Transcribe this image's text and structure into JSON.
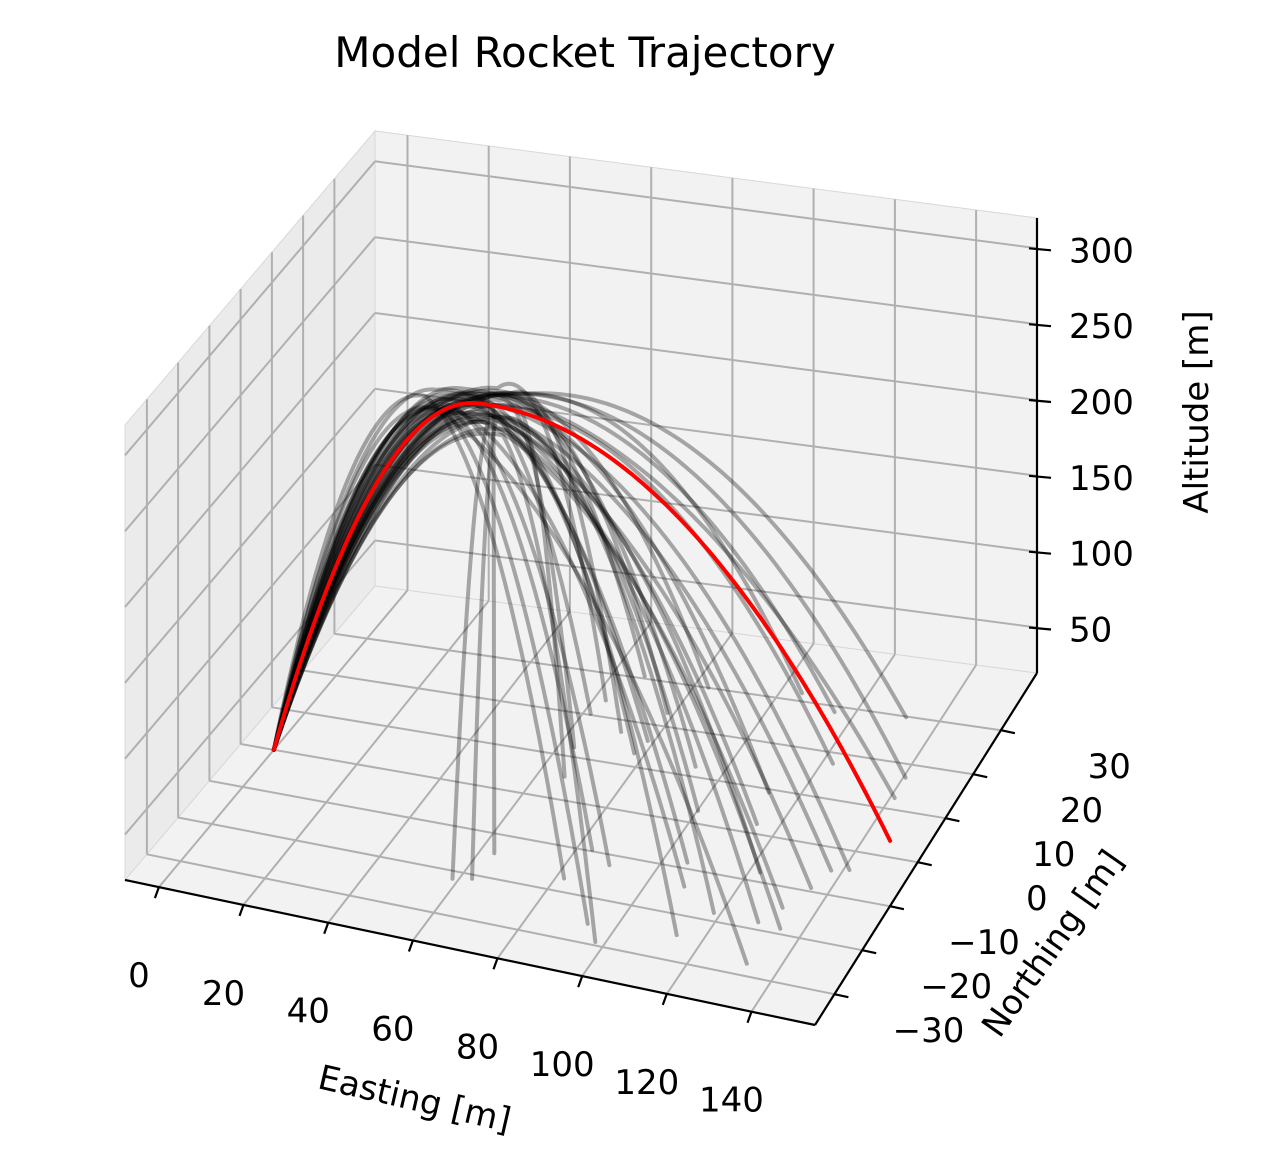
{
  "chart_data": {
    "type": "line3d",
    "title": "Model Rocket Trajectory",
    "xlabel": "Easting [m]",
    "ylabel": "Northing [m]",
    "zlabel": "Altitude [m]",
    "xlim": [
      -8,
      155
    ],
    "ylim": [
      -37,
      43
    ],
    "zlim": [
      20,
      320
    ],
    "xticks": [
      0,
      20,
      40,
      60,
      80,
      100,
      120,
      140
    ],
    "yticks": [
      -30,
      -20,
      -10,
      0,
      10,
      20,
      30
    ],
    "zticks": [
      50,
      100,
      150,
      200,
      250,
      300
    ],
    "grid": true,
    "colors": {
      "nominal": "#ff0000",
      "ensemble": "#000000",
      "pane": "#f2f2f2",
      "grid": "#b0b0b0"
    },
    "nominal": {
      "color": "red",
      "launch": [
        0,
        0,
        20
      ],
      "apex": [
        50,
        0,
        272
      ],
      "landing": [
        145,
        5,
        15
      ]
    },
    "ensemble": {
      "color": "black",
      "alpha": 0.32,
      "count": 40,
      "launch": [
        0,
        0,
        20
      ],
      "apex_x_range": [
        38,
        60
      ],
      "apex_z_range": [
        262,
        278
      ],
      "landing_x_range": [
        60,
        145
      ],
      "landing_y_range": [
        -35,
        32
      ]
    }
  }
}
